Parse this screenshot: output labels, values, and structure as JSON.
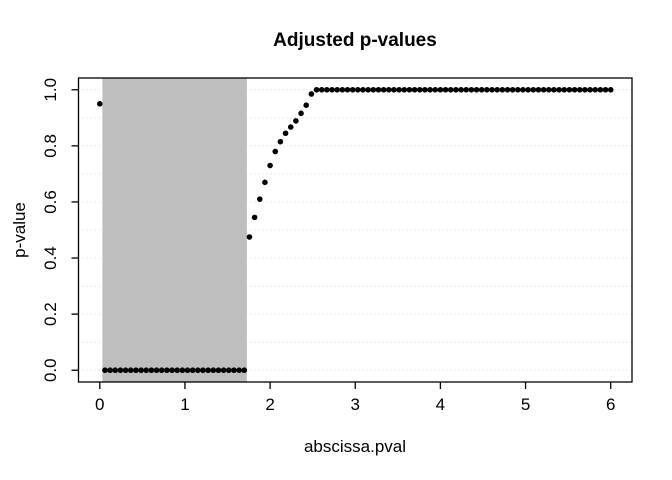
{
  "chart_data": {
    "type": "scatter",
    "title": "Adjusted p-values",
    "xlabel": "abscissa.pval",
    "ylabel": "p-value",
    "xlim": [
      -0.25,
      6.25
    ],
    "ylim": [
      -0.042,
      1.042
    ],
    "x_ticks": [
      {
        "value": 0,
        "label": "0"
      },
      {
        "value": 1,
        "label": "1"
      },
      {
        "value": 2,
        "label": "2"
      },
      {
        "value": 3,
        "label": "3"
      },
      {
        "value": 4,
        "label": "4"
      },
      {
        "value": 5,
        "label": "5"
      },
      {
        "value": 6,
        "label": "6"
      }
    ],
    "y_ticks": [
      {
        "value": 0.0,
        "label": "0.0"
      },
      {
        "value": 0.2,
        "label": "0.2"
      },
      {
        "value": 0.4,
        "label": "0.4"
      },
      {
        "value": 0.6,
        "label": "0.6"
      },
      {
        "value": 0.8,
        "label": "0.8"
      },
      {
        "value": 1.0,
        "label": "1.0"
      }
    ],
    "grid": {
      "style": "dotted",
      "color": "#d4d4d4",
      "vertical": false,
      "y_values": [
        0,
        0.1,
        0.2,
        0.3,
        0.4,
        0.5,
        0.6,
        0.7,
        0.8,
        0.9,
        1.0
      ]
    },
    "shaded_region": {
      "x_start": 0.0303,
      "x_end": 1.7273,
      "color": "#bebebe"
    },
    "points_color": "#000000",
    "point_radius_px": 2.8,
    "x": [
      0,
      0.0606,
      0.1212,
      0.1818,
      0.2424,
      0.303,
      0.3636,
      0.4242,
      0.4848,
      0.5455,
      0.6061,
      0.6667,
      0.7273,
      0.7879,
      0.8485,
      0.9091,
      0.9697,
      1.0303,
      1.0909,
      1.1515,
      1.2121,
      1.2727,
      1.3333,
      1.3939,
      1.4545,
      1.5152,
      1.5758,
      1.6364,
      1.697,
      1.7576,
      1.8182,
      1.8788,
      1.9394,
      2.0,
      2.0606,
      2.1212,
      2.1818,
      2.2424,
      2.303,
      2.3636,
      2.4242,
      2.4848,
      2.5455,
      2.6061,
      2.6667,
      2.7273,
      2.7879,
      2.8485,
      2.9091,
      2.9697,
      3.0303,
      3.0909,
      3.1515,
      3.2121,
      3.2727,
      3.3333,
      3.3939,
      3.4545,
      3.5152,
      3.5758,
      3.6364,
      3.697,
      3.7576,
      3.8182,
      3.8788,
      3.9394,
      4.0,
      4.0606,
      4.1212,
      4.1818,
      4.2424,
      4.303,
      4.3636,
      4.4242,
      4.4848,
      4.5455,
      4.6061,
      4.6667,
      4.7273,
      4.7879,
      4.8485,
      4.9091,
      4.9697,
      5.0303,
      5.0909,
      5.1515,
      5.2121,
      5.2727,
      5.3333,
      5.3939,
      5.4545,
      5.5152,
      5.5758,
      5.6364,
      5.697,
      5.7576,
      5.8182,
      5.8788,
      5.9394,
      6.0
    ],
    "y": [
      0.95,
      0,
      0,
      0,
      0,
      0,
      0,
      0,
      0,
      0,
      0,
      0,
      0,
      0,
      0,
      0,
      0,
      0,
      0,
      0,
      0,
      0,
      0,
      0,
      0,
      0,
      0,
      0,
      0,
      0.475,
      0.545,
      0.61,
      0.67,
      0.73,
      0.78,
      0.815,
      0.845,
      0.867,
      0.889,
      0.916,
      0.945,
      0.985,
      1,
      1,
      1,
      1,
      1,
      1,
      1,
      1,
      1,
      1,
      1,
      1,
      1,
      1,
      1,
      1,
      1,
      1,
      1,
      1,
      1,
      1,
      1,
      1,
      1,
      1,
      1,
      1,
      1,
      1,
      1,
      1,
      1,
      1,
      1,
      1,
      1,
      1,
      1,
      1,
      1,
      1,
      1,
      1,
      1,
      1,
      1,
      1,
      1,
      1,
      1,
      1,
      1,
      1,
      1,
      1,
      1,
      1
    ]
  }
}
